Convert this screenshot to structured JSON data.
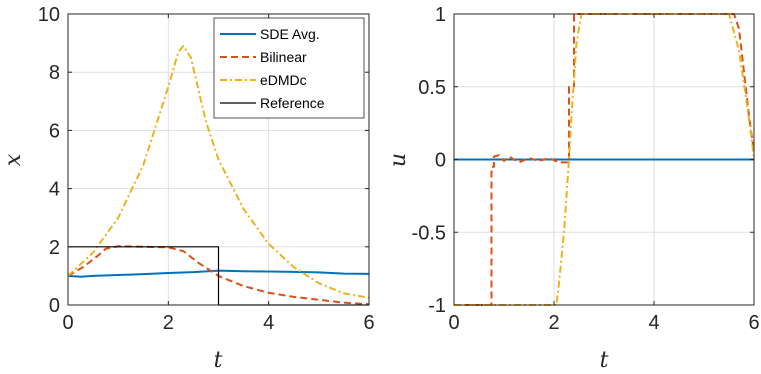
{
  "chart_data": [
    {
      "type": "line",
      "xlabel": "t",
      "ylabel": "x",
      "xlim": [
        0,
        6
      ],
      "ylim": [
        0,
        10
      ],
      "xticks": [
        "0",
        "2",
        "4",
        "6"
      ],
      "yticks": [
        "0",
        "2",
        "4",
        "6",
        "8",
        "10"
      ],
      "grid": true,
      "legend": "top-right",
      "series": [
        {
          "name": "SDE Avg.",
          "color": "#0072BD",
          "style": "solid",
          "x": [
            0,
            0.25,
            0.5,
            1,
            1.5,
            2,
            2.5,
            3,
            3.5,
            4,
            4.5,
            5,
            5.5,
            6
          ],
          "y": [
            1.0,
            0.97,
            1.0,
            1.03,
            1.06,
            1.1,
            1.13,
            1.18,
            1.16,
            1.15,
            1.14,
            1.12,
            1.08,
            1.07
          ]
        },
        {
          "name": "Bilinear",
          "color": "#D95319",
          "style": "dashed",
          "x": [
            0,
            0.3,
            0.6,
            0.75,
            1,
            1.5,
            2,
            2.3,
            2.6,
            3,
            3.5,
            4,
            4.5,
            5,
            5.5,
            6
          ],
          "y": [
            1.0,
            1.3,
            1.7,
            1.93,
            2.02,
            2.0,
            1.98,
            1.85,
            1.45,
            1.0,
            0.65,
            0.42,
            0.28,
            0.18,
            0.08,
            0.03
          ]
        },
        {
          "name": "eDMDc",
          "color": "#EDB120",
          "style": "dashdot",
          "x": [
            0,
            0.5,
            1,
            1.5,
            2,
            2.2,
            2.3,
            2.45,
            2.75,
            3,
            3.5,
            4,
            4.5,
            5,
            5.5,
            6
          ],
          "y": [
            1.0,
            1.8,
            3.0,
            4.8,
            7.5,
            8.7,
            8.9,
            8.5,
            6.3,
            5.0,
            3.3,
            2.1,
            1.3,
            0.75,
            0.4,
            0.25
          ]
        },
        {
          "name": "Reference",
          "color": "#000000",
          "style": "solid",
          "x": [
            0,
            3,
            3,
            6
          ],
          "y": [
            2,
            2,
            0,
            0
          ]
        }
      ]
    },
    {
      "type": "line",
      "xlabel": "t",
      "ylabel": "u",
      "xlim": [
        0,
        6
      ],
      "ylim": [
        -1,
        1
      ],
      "xticks": [
        "0",
        "2",
        "4",
        "6"
      ],
      "yticks": [
        "-1",
        "-0.5",
        "0",
        "0.5",
        "1"
      ],
      "grid": true,
      "series": [
        {
          "color": "#0072BD",
          "style": "solid",
          "x": [
            0,
            6
          ],
          "y": [
            0,
            0
          ]
        },
        {
          "color": "#D95319",
          "style": "dashed",
          "x": [
            0,
            0.75,
            0.75,
            0.8,
            0.8,
            0.9,
            1.0,
            1.1,
            1.3,
            1.5,
            1.7,
            1.9,
            2.1,
            2.3,
            2.3,
            2.4,
            2.4,
            5.6,
            5.7,
            5.8,
            5.9,
            6.0
          ],
          "y": [
            -1,
            -1,
            -0.05,
            -0.05,
            0.02,
            0.03,
            -0.01,
            0.02,
            -0.02,
            0.01,
            -0.01,
            0.01,
            -0.02,
            -0.02,
            0.5,
            0.5,
            1.0,
            1.0,
            0.9,
            0.6,
            0.3,
            0.05
          ]
        },
        {
          "color": "#EDB120",
          "style": "dashdot",
          "x": [
            0,
            2.05,
            2.1,
            2.2,
            2.3,
            2.35,
            2.45,
            2.55,
            5.5,
            5.7,
            5.85,
            5.95,
            6.0
          ],
          "y": [
            -1,
            -1,
            -0.85,
            -0.5,
            0.0,
            0.3,
            0.8,
            1.0,
            1.0,
            0.75,
            0.4,
            0.15,
            0.0
          ]
        }
      ]
    }
  ]
}
